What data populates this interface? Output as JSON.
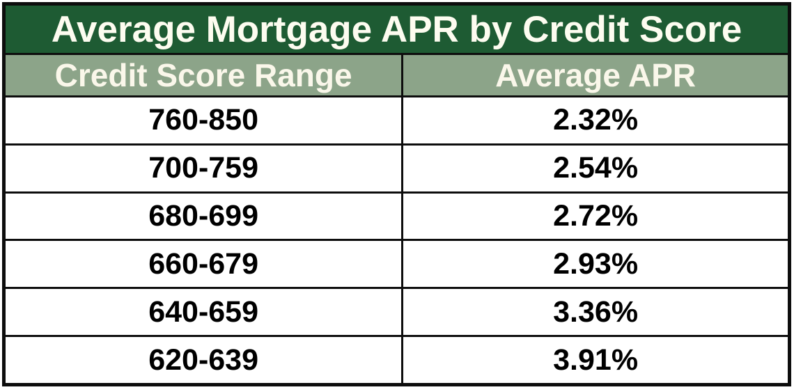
{
  "title": "Average Mortgage APR by Credit Score",
  "columns": {
    "range": "Credit Score Range",
    "apr": "Average APR"
  },
  "rows": [
    {
      "range": "760-850",
      "apr": "2.32%"
    },
    {
      "range": "700-759",
      "apr": "2.54%"
    },
    {
      "range": "680-699",
      "apr": "2.72%"
    },
    {
      "range": "660-679",
      "apr": "2.93%"
    },
    {
      "range": "640-659",
      "apr": "3.36%"
    },
    {
      "range": "620-639",
      "apr": "3.91%"
    }
  ],
  "colors": {
    "title_bg": "#1e5b33",
    "title_text": "#fdfcf0",
    "header_bg": "#8ca489",
    "header_text": "#faf7ea",
    "cell_bg": "#ffffff",
    "cell_text": "#000000",
    "border": "#0d0d0d"
  },
  "chart_data": {
    "type": "table",
    "title": "Average Mortgage APR by Credit Score",
    "columns": [
      "Credit Score Range",
      "Average APR"
    ],
    "rows": [
      [
        "760-850",
        "2.32%"
      ],
      [
        "700-759",
        "2.54%"
      ],
      [
        "680-699",
        "2.72%"
      ],
      [
        "660-679",
        "2.93%"
      ],
      [
        "640-659",
        "3.36%"
      ],
      [
        "620-639",
        "3.91%"
      ]
    ],
    "apr_values_percent": [
      2.32,
      2.54,
      2.72,
      2.93,
      3.36,
      3.91
    ]
  }
}
